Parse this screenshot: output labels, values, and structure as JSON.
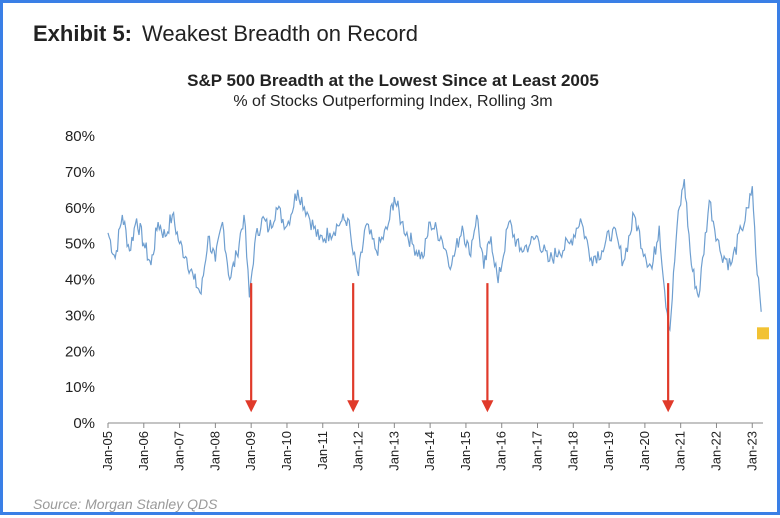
{
  "exhibit": {
    "label": "Exhibit 5:",
    "title": "Weakest Breadth on Record"
  },
  "source": "Source: Morgan Stanley QDS",
  "colors": {
    "line": "#6f9fd0",
    "arrow": "#e03a2a",
    "marker": "#f2c233",
    "frame": "#3a7fe6"
  },
  "chart_data": {
    "type": "line",
    "title": "S&P 500 Breadth at the Lowest Since at Least 2005",
    "subtitle": "% of Stocks Outperforming  Index, Rolling 3m",
    "ylim": [
      0,
      80
    ],
    "xlim": [
      2005.0,
      2023.3
    ],
    "yticks": [
      "0%",
      "10%",
      "20%",
      "30%",
      "40%",
      "50%",
      "60%",
      "70%",
      "80%"
    ],
    "xticks": [
      "Jan-05",
      "Jan-06",
      "Jan-07",
      "Jan-08",
      "Jan-09",
      "Jan-10",
      "Jan-11",
      "Jan-12",
      "Jan-13",
      "Jan-14",
      "Jan-15",
      "Jan-16",
      "Jan-17",
      "Jan-18",
      "Jan-19",
      "Jan-20",
      "Jan-21",
      "Jan-22",
      "Jan-23"
    ],
    "grid": false,
    "series": [
      {
        "x": [
          2005.0,
          2005.2,
          2005.4,
          2005.6,
          2005.8,
          2006.0,
          2006.2,
          2006.4,
          2006.6,
          2006.8,
          2007.0,
          2007.2,
          2007.4,
          2007.6,
          2007.8,
          2008.0,
          2008.2,
          2008.4,
          2008.6,
          2008.8,
          2008.95,
          2009.1,
          2009.3,
          2009.5,
          2009.7,
          2010.0,
          2010.3,
          2010.6,
          2010.9,
          2011.2,
          2011.5,
          2011.7,
          2011.85,
          2012.0,
          2012.2,
          2012.5,
          2012.8,
          2013.0,
          2013.2,
          2013.5,
          2013.8,
          2014.0,
          2014.3,
          2014.6,
          2014.9,
          2015.1,
          2015.3,
          2015.5,
          2015.7,
          2015.9,
          2016.2,
          2016.5,
          2016.8,
          2017.0,
          2017.3,
          2017.6,
          2017.9,
          2018.2,
          2018.5,
          2018.8,
          2019.1,
          2019.4,
          2019.7,
          2020.0,
          2020.2,
          2020.4,
          2020.55,
          2020.7,
          2020.9,
          2021.1,
          2021.3,
          2021.5,
          2021.8,
          2022.1,
          2022.4,
          2022.7,
          2022.9,
          2023.0,
          2023.1,
          2023.25
        ],
        "y": [
          53,
          46,
          58,
          48,
          57,
          50,
          44,
          56,
          52,
          58,
          50,
          46,
          40,
          36,
          52,
          45,
          56,
          40,
          47,
          58,
          35,
          50,
          57,
          54,
          60,
          55,
          65,
          58,
          51,
          53,
          56,
          57,
          47,
          41,
          55,
          48,
          54,
          63,
          56,
          50,
          46,
          56,
          52,
          44,
          55,
          47,
          58,
          43,
          52,
          39,
          56,
          48,
          50,
          52,
          45,
          48,
          50,
          57,
          46,
          48,
          54,
          45,
          58,
          47,
          43,
          55,
          37,
          26,
          55,
          68,
          44,
          35,
          62,
          48,
          44,
          54,
          60,
          66,
          47,
          31
        ]
      }
    ],
    "marker": {
      "x": 2023.3,
      "y": 25
    },
    "arrows": [
      2009.0,
      2011.85,
      2015.6,
      2020.65
    ]
  }
}
